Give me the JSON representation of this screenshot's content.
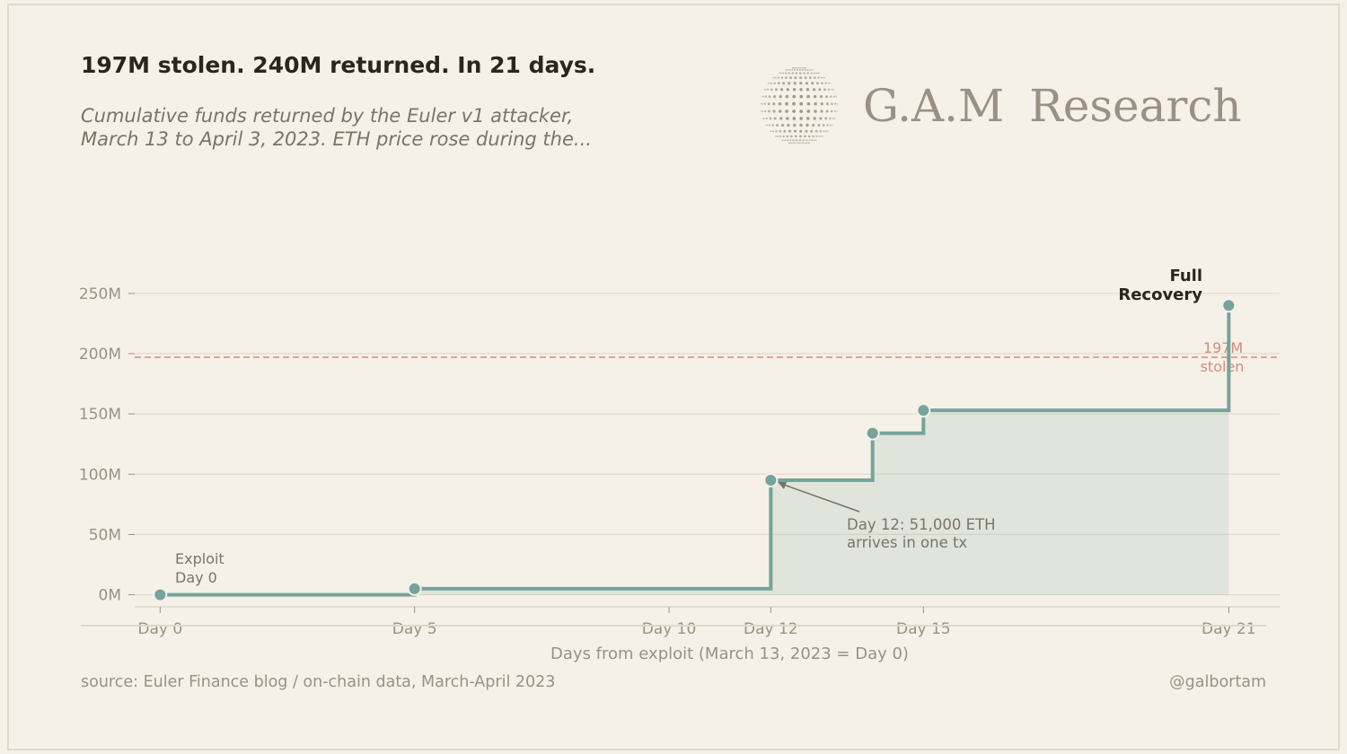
{
  "header": {
    "title": "197M stolen. 240M returned. In 21 days.",
    "subtitle_line1": "Cumulative funds returned by the Euler v1 attacker,",
    "subtitle_line2": "March 13 to April 3, 2023. ETH price rose during the..."
  },
  "brand": {
    "name": "G.A.M  Research",
    "logo_icon": "dotted-globe-icon"
  },
  "footer": {
    "source": "source: Euler Finance blog / on-chain data, March-April 2023",
    "handle": "@galbortam"
  },
  "colors": {
    "background": "#f5f1e8",
    "line": "#76a39b",
    "fill": "#76a39b",
    "reference": "#d08d7e",
    "annotation": "#7a7468",
    "axis_text": "#9a9184"
  },
  "chart_data": {
    "type": "line",
    "step": true,
    "xlabel": "Days from exploit (March 13, 2023 = Day 0)",
    "ylabel": "",
    "xlim": [
      -0.5,
      22
    ],
    "ylim": [
      -10,
      270
    ],
    "x_ticks": [
      0,
      5,
      10,
      12,
      15,
      21
    ],
    "x_tick_labels": [
      "Day 0",
      "Day 5",
      "Day 10",
      "Day 12",
      "Day 15",
      "Day 21"
    ],
    "y_ticks": [
      0,
      50,
      100,
      150,
      200,
      250
    ],
    "y_tick_labels": [
      "0M",
      "50M",
      "100M",
      "150M",
      "200M",
      "250M"
    ],
    "grid": true,
    "series": [
      {
        "x": [
          0,
          5,
          12,
          14,
          15,
          21
        ],
        "y": [
          0,
          5,
          95,
          134,
          153,
          240
        ]
      }
    ],
    "reference_line": {
      "y": 197,
      "label_line1": "197M",
      "label_line2": "stolen"
    },
    "annotations": [
      {
        "x": 0,
        "y": 0,
        "line1": "Exploit",
        "line2": "Day 0"
      },
      {
        "x": 12,
        "y": 95,
        "line1": "Day 12: 51,000 ETH",
        "line2": "arrives in one tx"
      },
      {
        "x": 21,
        "y": 240,
        "line1": "Full",
        "line2": "Recovery"
      }
    ]
  }
}
